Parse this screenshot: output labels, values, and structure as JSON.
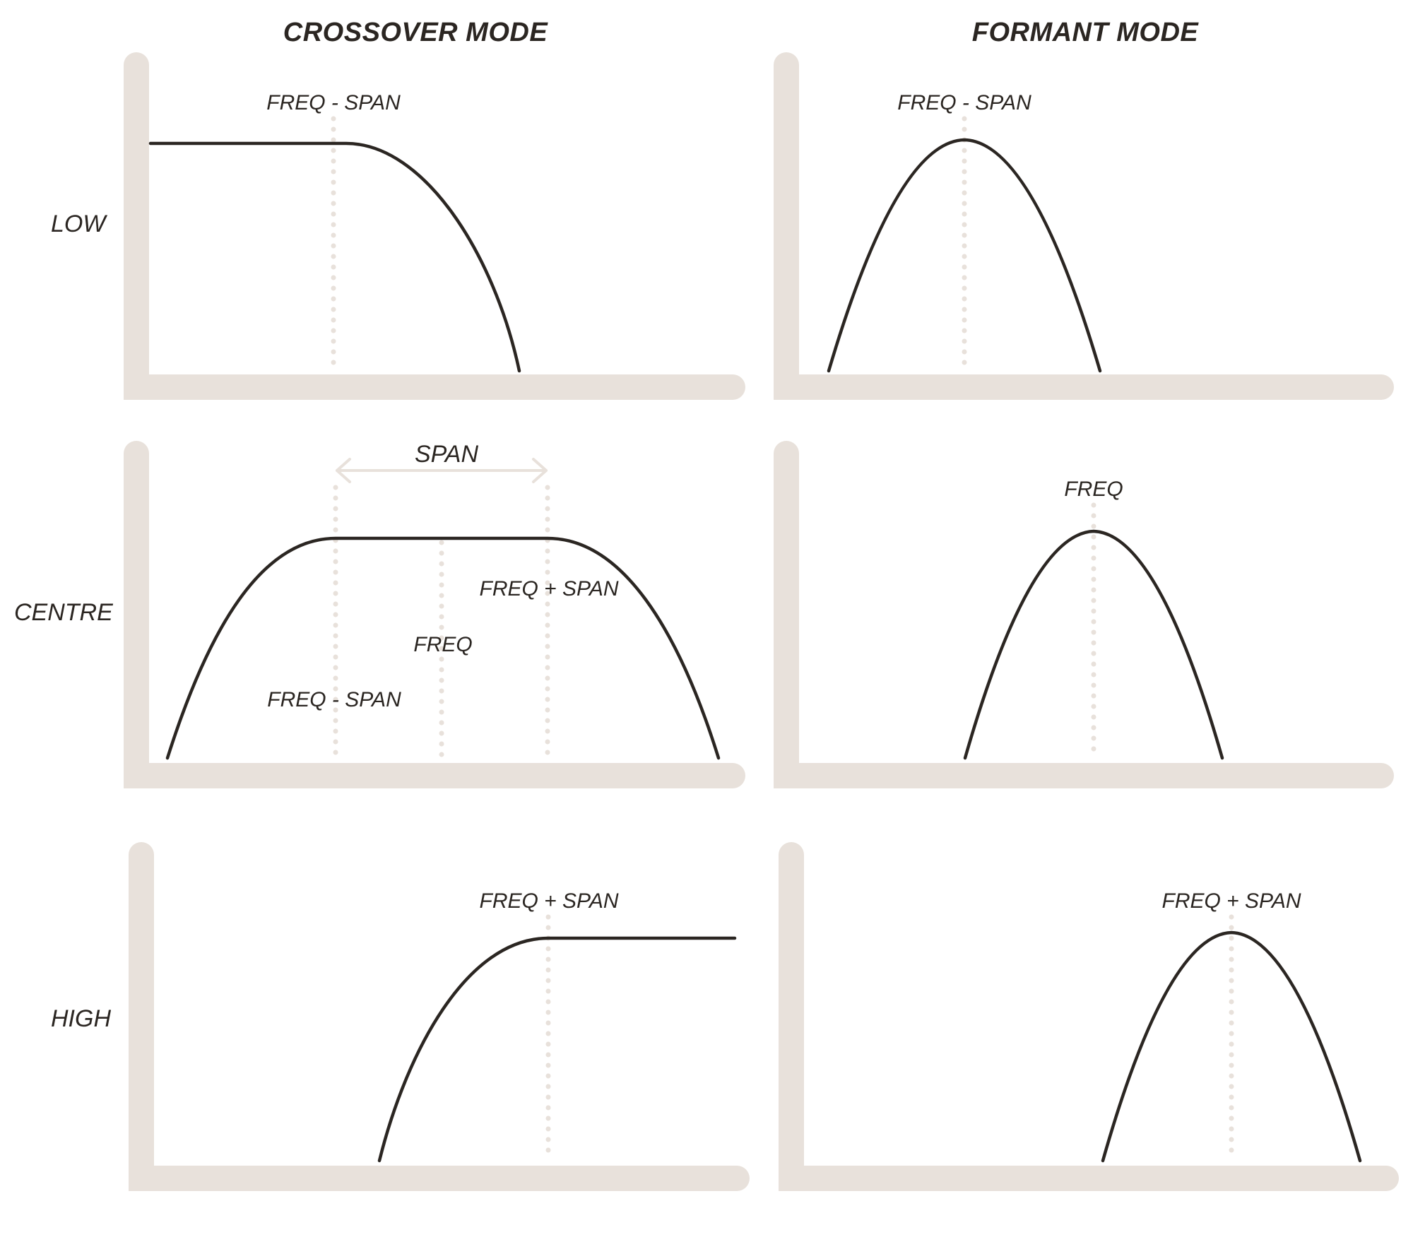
{
  "columns": {
    "crossover": "CROSSOVER MODE",
    "formant": "FORMANT MODE"
  },
  "rows": {
    "low": "LOW",
    "centre": "CENTRE",
    "high": "HIGH"
  },
  "annotations": {
    "freq_minus_span": "FREQ - SPAN",
    "freq": "FREQ",
    "freq_plus_span": "FREQ + SPAN",
    "span": "SPAN"
  },
  "colors": {
    "axis": "#e8e1db",
    "curve": "#2b2622",
    "text": "#2b2622",
    "background": "#ffffff"
  }
}
